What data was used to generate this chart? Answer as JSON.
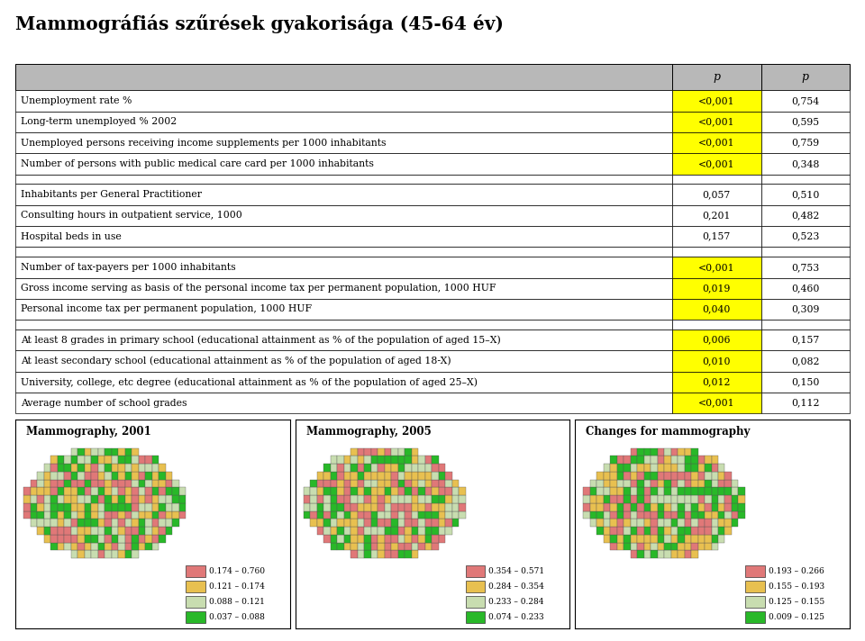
{
  "title": "Mammográfiás szűrések gyakorisága (45-64 év)",
  "table_rows": [
    {
      "label": "Unemployment rate %",
      "p1": "<0,001",
      "p2": "0,754",
      "p1_yellow": true,
      "p2_yellow": false
    },
    {
      "label": "Long-term unemployed % 2002",
      "p1": "<0,001",
      "p2": "0,595",
      "p1_yellow": true,
      "p2_yellow": false
    },
    {
      "label": "Unemployed persons receiving income supplements per 1000 inhabitants",
      "p1": "<0,001",
      "p2": "0,759",
      "p1_yellow": true,
      "p2_yellow": false
    },
    {
      "label": "Number of persons with public medical care card per 1000 inhabitants",
      "p1": "<0,001",
      "p2": "0,348",
      "p1_yellow": true,
      "p2_yellow": false
    },
    {
      "label": "",
      "p1": "",
      "p2": "",
      "p1_yellow": false,
      "p2_yellow": false
    },
    {
      "label": "Inhabitants per General Practitioner",
      "p1": "0,057",
      "p2": "0,510",
      "p1_yellow": false,
      "p2_yellow": false
    },
    {
      "label": "Consulting hours in outpatient service, 1000",
      "p1": "0,201",
      "p2": "0,482",
      "p1_yellow": false,
      "p2_yellow": false
    },
    {
      "label": "Hospital beds in use",
      "p1": "0,157",
      "p2": "0,523",
      "p1_yellow": false,
      "p2_yellow": false
    },
    {
      "label": "",
      "p1": "",
      "p2": "",
      "p1_yellow": false,
      "p2_yellow": false
    },
    {
      "label": "Number of tax-payers per 1000 inhabitants",
      "p1": "<0,001",
      "p2": "0,753",
      "p1_yellow": true,
      "p2_yellow": false
    },
    {
      "label": "Gross income serving as basis of the personal income tax per permanent population, 1000 HUF",
      "p1": "0,019",
      "p2": "0,460",
      "p1_yellow": true,
      "p2_yellow": false
    },
    {
      "label": "Personal income tax per permanent population, 1000 HUF",
      "p1": "0,040",
      "p2": "0,309",
      "p1_yellow": true,
      "p2_yellow": false
    },
    {
      "label": "",
      "p1": "",
      "p2": "",
      "p1_yellow": false,
      "p2_yellow": false
    },
    {
      "label": "At least 8 grades in primary school (educational attainment as % of the population of aged 15–X)",
      "p1": "0,006",
      "p2": "0,157",
      "p1_yellow": true,
      "p2_yellow": false
    },
    {
      "label": "At least secondary school (educational attainment as % of the population of aged 18-X)",
      "p1": "0,010",
      "p2": "0,082",
      "p1_yellow": true,
      "p2_yellow": false
    },
    {
      "label": "University, college, etc degree (educational attainment as % of the population of aged 25–X)",
      "p1": "0,012",
      "p2": "0,150",
      "p1_yellow": true,
      "p2_yellow": false
    },
    {
      "label": "Average number of school grades",
      "p1": "<0,001",
      "p2": "0,112",
      "p1_yellow": true,
      "p2_yellow": false
    }
  ],
  "header_bg": "#b8b8b8",
  "row_bg": "#ffffff",
  "yellow": "#ffff00",
  "border_color": "#000000",
  "map_titles": [
    "Mammography, 2001",
    "Mammography, 2005",
    "Changes for mammography"
  ],
  "map_legends": [
    [
      {
        "color": "#e07878",
        "label": "0.174 – 0.760"
      },
      {
        "color": "#e8c050",
        "label": "0.121 – 0.174"
      },
      {
        "color": "#c8ddb0",
        "label": "0.088 – 0.121"
      },
      {
        "color": "#28b828",
        "label": "0.037 – 0.088"
      }
    ],
    [
      {
        "color": "#e07878",
        "label": "0.354 – 0.571"
      },
      {
        "color": "#e8c050",
        "label": "0.284 – 0.354"
      },
      {
        "color": "#c8ddb0",
        "label": "0.233 – 0.284"
      },
      {
        "color": "#28b828",
        "label": "0.074 – 0.233"
      }
    ],
    [
      {
        "color": "#e07878",
        "label": "0.193 – 0.266"
      },
      {
        "color": "#e8c050",
        "label": "0.155 – 0.193"
      },
      {
        "color": "#c8ddb0",
        "label": "0.125 – 0.155"
      },
      {
        "color": "#28b828",
        "label": "0.009 – 0.125"
      }
    ]
  ],
  "map_bg": "#ffffff",
  "fig_bg": "#ffffff"
}
